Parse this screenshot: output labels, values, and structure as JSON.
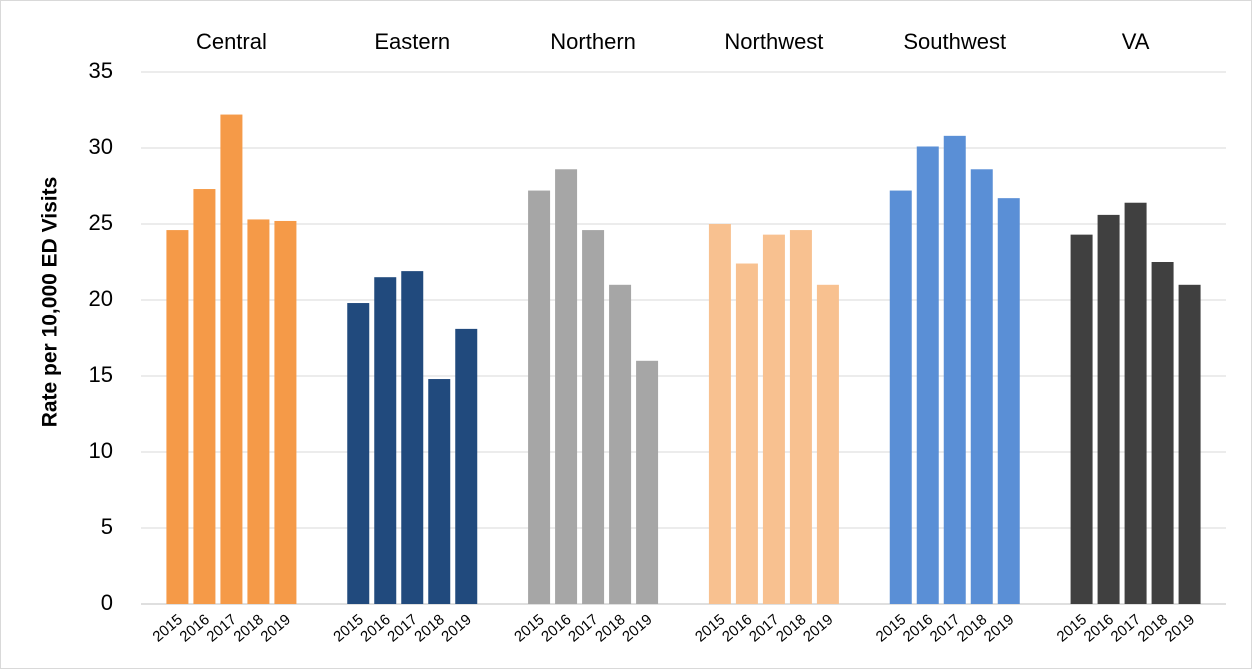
{
  "chart_data": {
    "type": "bar",
    "title": "",
    "xlabel": "",
    "ylabel": "Rate per 10,000 ED Visits",
    "ylim": [
      0,
      35
    ],
    "yticks": [
      0,
      5,
      10,
      15,
      20,
      25,
      30,
      35
    ],
    "grid": true,
    "legend": "none",
    "years": [
      "2015",
      "2016",
      "2017",
      "2018",
      "2019"
    ],
    "groups": [
      {
        "name": "Central",
        "color": "#f59a48",
        "values": [
          24.6,
          27.3,
          32.2,
          25.3,
          25.2
        ]
      },
      {
        "name": "Eastern",
        "color": "#214a7d",
        "values": [
          19.8,
          21.5,
          21.9,
          14.8,
          18.1
        ]
      },
      {
        "name": "Northern",
        "color": "#a6a6a6",
        "values": [
          27.2,
          28.6,
          24.6,
          21.0,
          16.0
        ]
      },
      {
        "name": "Northwest",
        "color": "#f8c190",
        "values": [
          25.0,
          22.4,
          24.3,
          24.6,
          21.0
        ]
      },
      {
        "name": "Southwest",
        "color": "#5a8fd6",
        "values": [
          27.2,
          30.1,
          30.8,
          28.6,
          26.7
        ]
      },
      {
        "name": "VA",
        "color": "#404040",
        "values": [
          24.3,
          25.6,
          26.4,
          22.5,
          21.0
        ]
      }
    ]
  }
}
